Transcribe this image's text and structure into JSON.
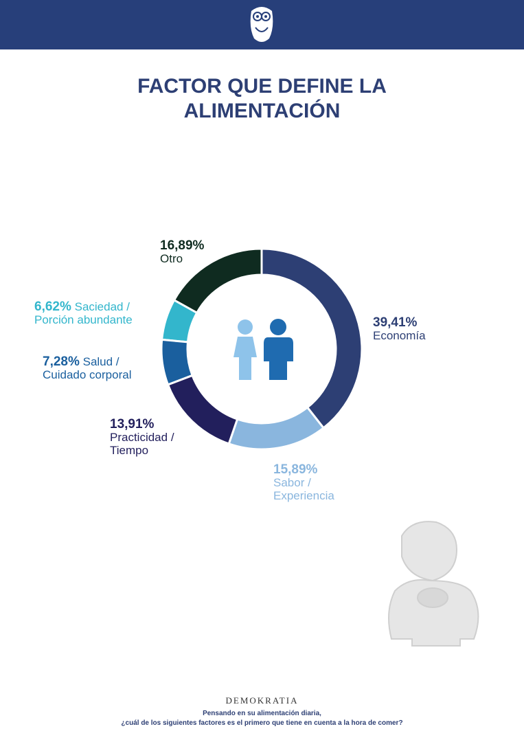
{
  "chart_data": {
    "type": "donut",
    "title": "FACTOR QUE DEFINE LA ALIMENTACIÓN",
    "categories": [
      "Economía",
      "Sabor / Experiencia",
      "Practicidad / Tiempo",
      "Salud / Cuidado corporal",
      "Saciedad / Porción abundante",
      "Otro"
    ],
    "values": [
      39.41,
      15.89,
      13.91,
      7.28,
      6.62,
      16.89
    ],
    "value_labels": [
      "39,41%",
      "15,89%",
      "13,91%",
      "7,28%",
      "6,62%",
      "16,89%"
    ],
    "colors": [
      "#2d3f74",
      "#8ab6de",
      "#221f5c",
      "#1a5f9e",
      "#33b6cc",
      "#0f2b20"
    ]
  },
  "footer": {
    "brand": "DEMOKRATIA",
    "question": [
      "Pensando en su alimentación diaria,",
      "¿cuál de los siguientes factores es el primero que tiene en cuenta a la hora de comer?"
    ]
  }
}
